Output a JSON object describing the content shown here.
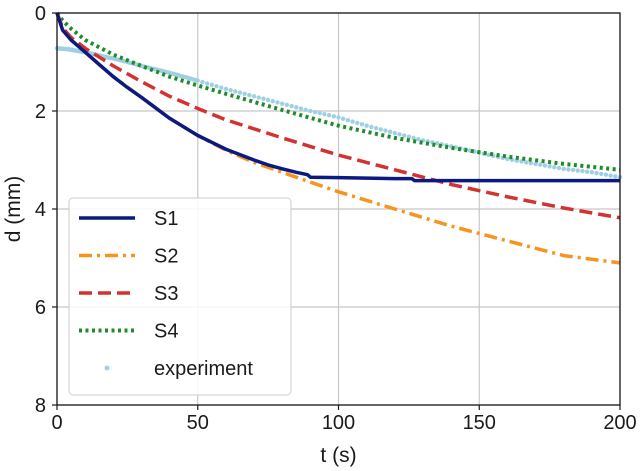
{
  "chart_data": {
    "type": "line",
    "title": "",
    "xlabel": "t (s)",
    "ylabel": "d (mm)",
    "xlim": [
      0,
      200
    ],
    "ylim": [
      0,
      8
    ],
    "y_inverted": true,
    "grid": true,
    "xticks": [
      0,
      50,
      100,
      150,
      200
    ],
    "xtick_labels": [
      "0",
      "50",
      "100",
      "150",
      "200"
    ],
    "yticks": [
      0,
      2,
      4,
      6,
      8
    ],
    "ytick_labels": [
      "0",
      "2",
      "4",
      "6",
      "8"
    ],
    "legend_position": "lower-left",
    "series": [
      {
        "name": "S1",
        "color": "#0b1a80",
        "style": "solid",
        "x": [
          0,
          2,
          5,
          10,
          15,
          20,
          25,
          30,
          40,
          50,
          60,
          70,
          75,
          80,
          85,
          89,
          90,
          100,
          110,
          120,
          126,
          127,
          140,
          160,
          180,
          200
        ],
        "y": [
          0,
          0.35,
          0.55,
          0.8,
          1.05,
          1.3,
          1.52,
          1.72,
          2.15,
          2.5,
          2.78,
          3.0,
          3.1,
          3.18,
          3.25,
          3.3,
          3.35,
          3.36,
          3.37,
          3.38,
          3.38,
          3.42,
          3.42,
          3.42,
          3.42,
          3.42
        ]
      },
      {
        "name": "S2",
        "color": "#f5941e",
        "style": "dashdot",
        "x": [
          0,
          2,
          5,
          10,
          20,
          30,
          40,
          50,
          60,
          70,
          80,
          90,
          100,
          120,
          140,
          160,
          180,
          200
        ],
        "y": [
          0,
          0.35,
          0.55,
          0.8,
          1.3,
          1.72,
          2.15,
          2.5,
          2.8,
          3.05,
          3.25,
          3.45,
          3.65,
          4.0,
          4.35,
          4.65,
          4.95,
          5.1
        ]
      },
      {
        "name": "S3",
        "color": "#d43131",
        "style": "dashed",
        "x": [
          0,
          2,
          5,
          10,
          20,
          30,
          40,
          50,
          60,
          80,
          100,
          120,
          140,
          160,
          180,
          200
        ],
        "y": [
          0,
          0.3,
          0.5,
          0.72,
          1.08,
          1.4,
          1.7,
          1.95,
          2.18,
          2.55,
          2.9,
          3.2,
          3.5,
          3.75,
          3.98,
          4.18
        ]
      },
      {
        "name": "S4",
        "color": "#1f8c2a",
        "style": "dotted",
        "x": [
          0,
          2,
          5,
          10,
          20,
          30,
          40,
          50,
          60,
          80,
          100,
          120,
          140,
          160,
          180,
          200
        ],
        "y": [
          0,
          0.15,
          0.32,
          0.55,
          0.85,
          1.08,
          1.3,
          1.48,
          1.65,
          1.98,
          2.3,
          2.55,
          2.75,
          2.93,
          3.08,
          3.2
        ]
      },
      {
        "name": "experiment",
        "color": "#9fcfe3",
        "style": "markers",
        "x": [
          0,
          2,
          4,
          6,
          8,
          10,
          13,
          16,
          20,
          25,
          30,
          35,
          40,
          45,
          50,
          60,
          70,
          80,
          90,
          100,
          110,
          120,
          130,
          140,
          150,
          160,
          170,
          180,
          190,
          200
        ],
        "y": [
          0.72,
          0.73,
          0.74,
          0.76,
          0.78,
          0.8,
          0.84,
          0.88,
          0.93,
          1.0,
          1.08,
          1.15,
          1.22,
          1.3,
          1.38,
          1.55,
          1.7,
          1.85,
          2.0,
          2.13,
          2.3,
          2.45,
          2.6,
          2.72,
          2.85,
          2.98,
          3.08,
          3.18,
          3.25,
          3.35
        ]
      }
    ]
  }
}
